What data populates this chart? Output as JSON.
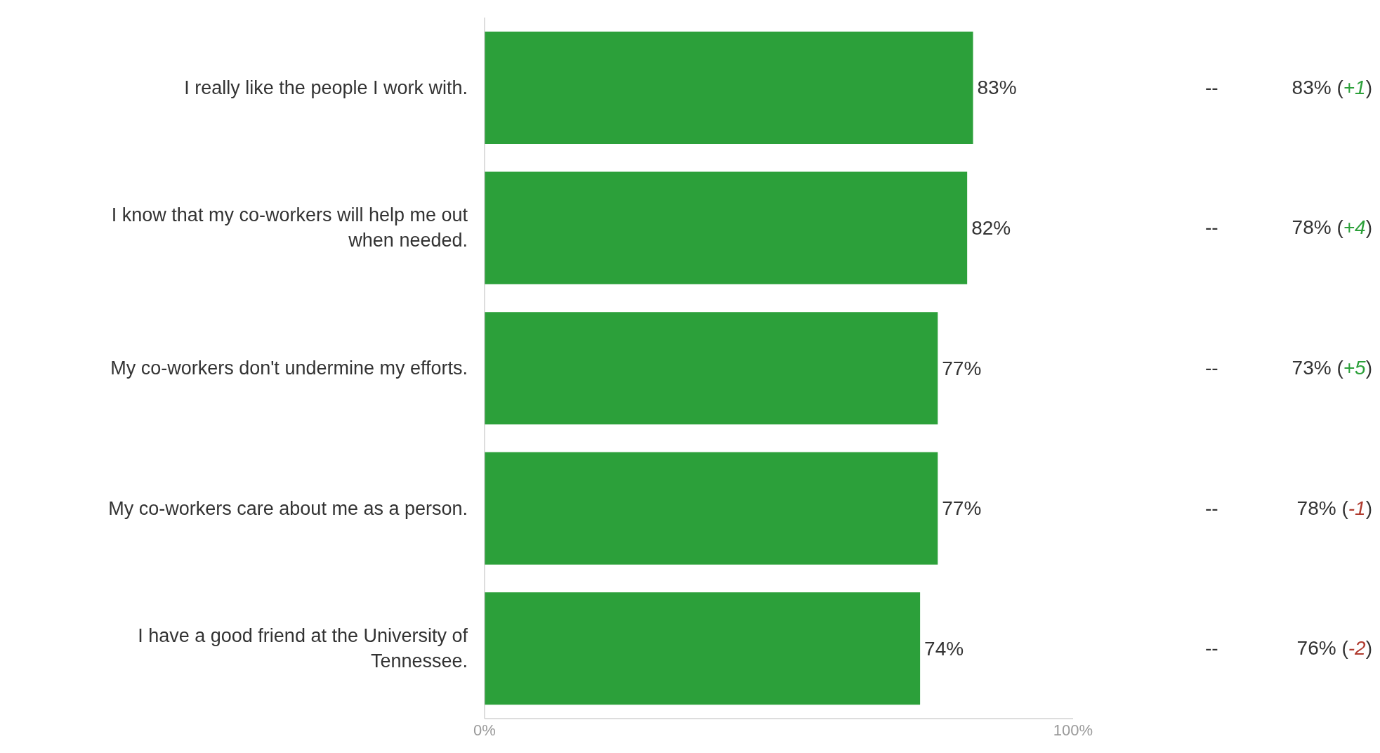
{
  "chart_data": {
    "type": "bar",
    "orientation": "horizontal",
    "categories": [
      "I really like the people I work with.",
      "I know that my co-workers will help me out when needed.",
      "My co-workers don't undermine my efforts.",
      "My co-workers care about me as a person.",
      "I have a good friend at the University of Tennessee."
    ],
    "values": [
      83,
      82,
      77,
      77,
      74
    ],
    "value_labels": [
      "83%",
      "82%",
      "77%",
      "77%",
      "74%"
    ],
    "color": "#2ca03a",
    "xlim": [
      0,
      100
    ],
    "xticks": [
      {
        "value": 0,
        "label": "0%"
      },
      {
        "value": 100,
        "label": "100%"
      }
    ],
    "grid": false,
    "legend": false,
    "annotations": [
      "--",
      "83% (+1)",
      "--",
      "78% (+4)",
      "--",
      "73% (+5)",
      "--",
      "78% (-1)",
      "--",
      "76% (-2)"
    ]
  }
}
